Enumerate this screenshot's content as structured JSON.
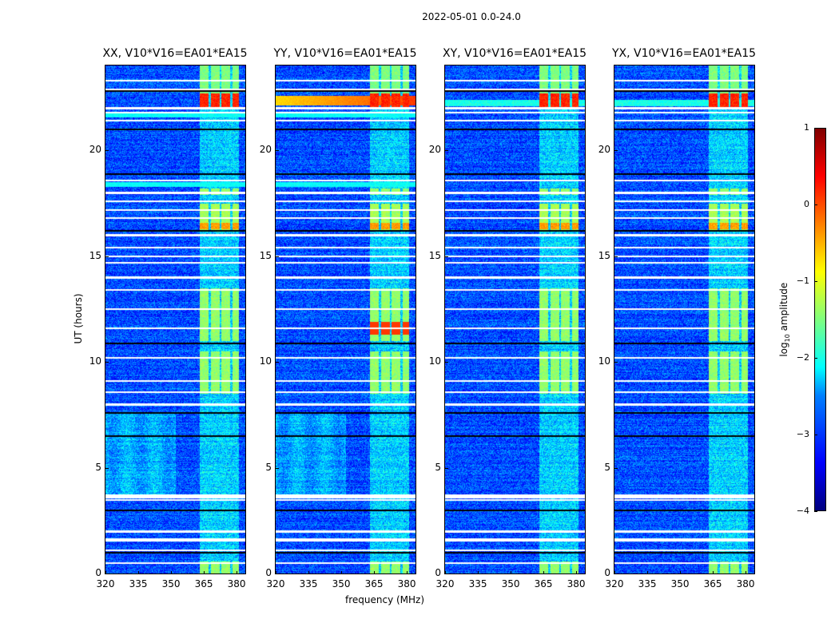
{
  "suptitle": "2022-05-01 0.0-24.0",
  "chart_data": {
    "type": "heatmap",
    "xlabel": "frequency (MHz)",
    "ylabel": "UT (hours)",
    "xlim": [
      320,
      384
    ],
    "ylim": [
      0,
      24
    ],
    "xticks": [
      "320",
      "335",
      "350",
      "365",
      "380"
    ],
    "xtick_values": [
      320,
      335,
      350,
      365,
      380
    ],
    "yticks": [
      "0",
      "5",
      "10",
      "15",
      "20"
    ],
    "ytick_values": [
      0,
      5,
      10,
      15,
      20
    ],
    "colorbar": {
      "label_main": "log",
      "label_sub": "10",
      "label_rest": " amplitude",
      "range": [
        -4,
        1
      ],
      "ticks": [
        "−4",
        "−3",
        "−2",
        "−1",
        "0",
        "1"
      ],
      "tick_values": [
        -4,
        -3,
        -2,
        -1,
        0,
        1
      ],
      "colormap": "jet"
    },
    "panels": [
      {
        "title": "XX, V10*V16=EA01*EA15",
        "parallel": true,
        "yy_extra": false
      },
      {
        "title": "YY, V10*V16=EA01*EA15",
        "parallel": true,
        "yy_extra": true
      },
      {
        "title": "XY, V10*V16=EA01*EA15",
        "parallel": false,
        "yy_extra": false
      },
      {
        "title": "YX, V10*V16=EA01*EA15",
        "parallel": false,
        "yy_extra": false
      }
    ],
    "background_level": -3.0,
    "rfi_band_mhz": [
      363,
      381
    ],
    "rfi_gaps_mhz": [
      367.5,
      372.5,
      377.5
    ],
    "rfi_bursts": [
      {
        "t": [
          0,
          0.6
        ],
        "level": -1.4
      },
      {
        "t": [
          8.5,
          10.5
        ],
        "level": -1.4
      },
      {
        "t": [
          11,
          13.5
        ],
        "level": -1.4
      },
      {
        "t": [
          16.2,
          17.5
        ],
        "level": -1.3
      },
      {
        "t": [
          16.3,
          16.6
        ],
        "level": -0.4
      },
      {
        "t": [
          17.9,
          18.2
        ],
        "level": -1.4
      },
      {
        "t": [
          22.5,
          24
        ],
        "level": -1.5
      },
      {
        "t": [
          22,
          22.7
        ],
        "level": 0.2
      }
    ],
    "flagged_hours": [
      0.5,
      1.1,
      1.55,
      1.65,
      2.0,
      3.5,
      3.6,
      3.7,
      8.0,
      8.6,
      9.1,
      10.2,
      11.6,
      12.5,
      13.4,
      14.0,
      14.7,
      15.0,
      15.4,
      16.0,
      16.8,
      17.2,
      17.6,
      18.0,
      18.6,
      21.4,
      21.8,
      22.0,
      22.9,
      23.3
    ],
    "zero_hours": [
      1.0,
      3.0,
      6.5,
      7.6,
      10.9,
      16.2,
      18.9,
      21.0,
      22.8
    ]
  }
}
